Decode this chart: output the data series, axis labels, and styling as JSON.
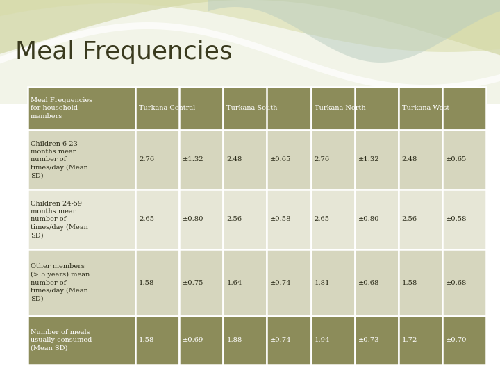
{
  "title": "Meal Frequencies",
  "title_fontsize": 26,
  "title_color": "#3a3a1e",
  "background_color": "#ffffff",
  "header_bg": "#8c8c5a",
  "odd_row_bg": "#d6d6be",
  "even_row_bg": "#e6e6d6",
  "last_row_bg": "#8c8c5a",
  "header_text_color": "#ffffff",
  "cell_text_color": "#2a2a18",
  "last_row_text_color": "#ffffff",
  "rows": [
    {
      "label": "Children 6-23\nmonths mean\nnumber of\ntimes/day (Mean\nSD)",
      "values": [
        "2.76",
        "±1.32",
        "2.48",
        "±0.65",
        "2.76",
        "±1.32",
        "2.48",
        "±0.65"
      ],
      "bg": "#d6d6be"
    },
    {
      "label": "Children 24-59\nmonths mean\nnumber of\ntimes/day (Mean\nSD)",
      "values": [
        "2.65",
        "±0.80",
        "2.56",
        "±0.58",
        "2.65",
        "±0.80",
        "2.56",
        "±0.58"
      ],
      "bg": "#e6e6d6"
    },
    {
      "label": "Other members\n(> 5 years) mean\nnumber of\ntimes/day (Mean\nSD)",
      "values": [
        "1.58",
        "±0.75",
        "1.64",
        "±0.74",
        "1.81",
        "±0.68",
        "1.58",
        "±0.68"
      ],
      "bg": "#d6d6be"
    },
    {
      "label": "Number of meals\nusually consumed\n(Mean SD)",
      "values": [
        "1.58",
        "±0.69",
        "1.88",
        "±0.74",
        "1.94",
        "±0.73",
        "1.72",
        "±0.70"
      ],
      "bg": "#8c8c5a"
    }
  ]
}
